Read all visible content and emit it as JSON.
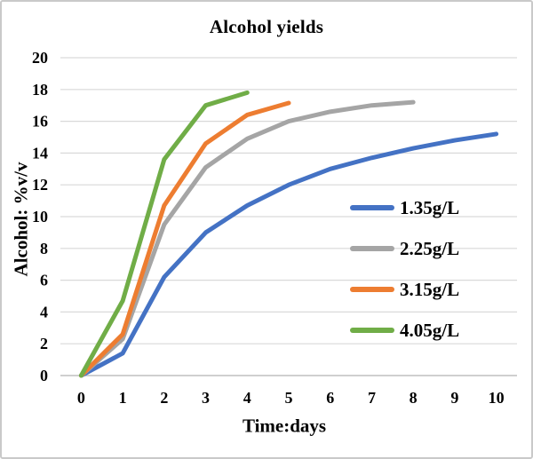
{
  "chart_data": {
    "type": "line",
    "title": "Alcohol yields",
    "xlabel": "Time:days",
    "ylabel": "Alcohol: %v/v",
    "xlim": [
      0,
      10
    ],
    "ylim": [
      0,
      20
    ],
    "x_ticks": [
      0,
      1,
      2,
      3,
      4,
      5,
      6,
      7,
      8,
      9,
      10
    ],
    "y_ticks": [
      0,
      2,
      4,
      6,
      8,
      10,
      12,
      14,
      16,
      18,
      20
    ],
    "grid": "horizontal",
    "legend_position": "inside-right",
    "gridline_color": "#d9d9d9",
    "axis_line_color": "#bfbfbf",
    "text_color": "#000000",
    "series": [
      {
        "name": "1.35g/L",
        "color": "#4472C4",
        "x": [
          0,
          1,
          2,
          3,
          4,
          5,
          6,
          7,
          8,
          9,
          10
        ],
        "values": [
          0,
          1.4,
          6.2,
          9.0,
          10.7,
          12.0,
          13.0,
          13.7,
          14.3,
          14.8,
          15.2
        ]
      },
      {
        "name": "2.25g/L",
        "color": "#A5A5A5",
        "x": [
          0,
          1,
          2,
          3,
          4,
          5,
          6,
          7,
          8
        ],
        "values": [
          0,
          2.3,
          9.5,
          13.1,
          14.9,
          16.0,
          16.6,
          17.0,
          17.2
        ]
      },
      {
        "name": "3.15g/L",
        "color": "#ED7D31",
        "x": [
          0,
          1,
          2,
          3,
          4,
          5
        ],
        "values": [
          0,
          2.6,
          10.7,
          14.6,
          16.4,
          17.15
        ]
      },
      {
        "name": "4.05g/L",
        "color": "#70AD47",
        "x": [
          0,
          1,
          2,
          3,
          4
        ],
        "values": [
          0,
          4.7,
          13.6,
          17.0,
          17.8
        ]
      }
    ]
  }
}
